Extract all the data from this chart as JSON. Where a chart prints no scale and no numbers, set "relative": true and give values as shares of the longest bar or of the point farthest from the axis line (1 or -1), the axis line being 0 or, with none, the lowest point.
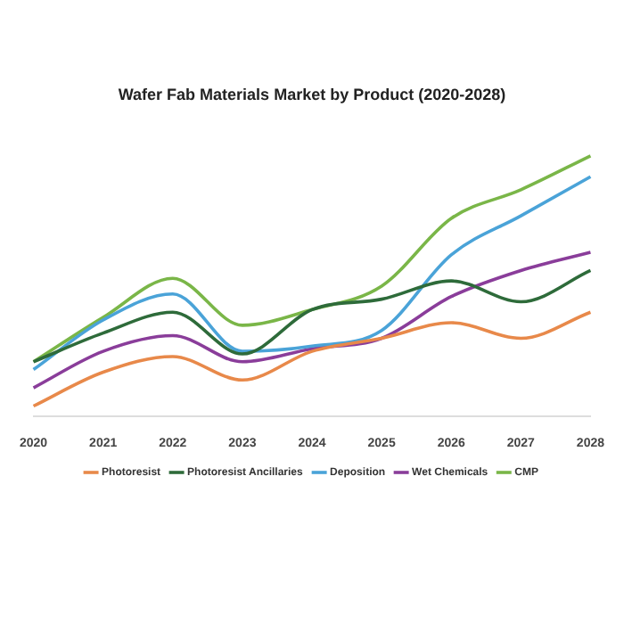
{
  "chart_data": {
    "type": "line",
    "title": "Wafer Fab Materials Market by Product (2020-2028)",
    "relative": true,
    "legend": "bottom",
    "marker": "none",
    "line_style": "solid",
    "categories": [
      "2020",
      "2021",
      "2022",
      "2023",
      "2024",
      "2025",
      "2026",
      "2027",
      "2028"
    ],
    "series": [
      {
        "name": "Photoresist",
        "color": "#e8894a",
        "values": [
          0.04,
          0.17,
          0.23,
          0.14,
          0.25,
          0.3,
          0.36,
          0.3,
          0.4
        ]
      },
      {
        "name": "Photoresist Ancillaries",
        "color": "#2e6b3a",
        "values": [
          0.21,
          0.32,
          0.4,
          0.24,
          0.41,
          0.45,
          0.52,
          0.44,
          0.56
        ]
      },
      {
        "name": "Deposition",
        "color": "#4aa3d8",
        "values": [
          0.18,
          0.37,
          0.47,
          0.25,
          0.27,
          0.33,
          0.62,
          0.77,
          0.92
        ]
      },
      {
        "name": "Wet Chemicals",
        "color": "#8a3d9a",
        "values": [
          0.11,
          0.25,
          0.31,
          0.21,
          0.26,
          0.3,
          0.46,
          0.56,
          0.63
        ]
      },
      {
        "name": "CMP",
        "color": "#7ab648",
        "values": [
          0.21,
          0.38,
          0.53,
          0.35,
          0.41,
          0.5,
          0.76,
          0.87,
          1
        ]
      }
    ]
  }
}
